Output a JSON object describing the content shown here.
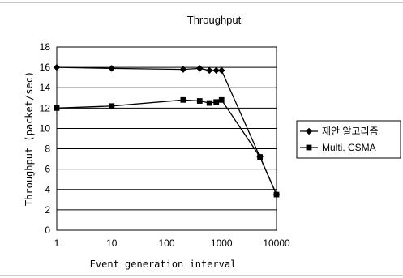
{
  "chart_data": {
    "type": "line",
    "title": "Throughput",
    "xlabel": "Event generation interval",
    "ylabel": "Throughput (packet/sec)",
    "x_scale": "log",
    "xlim": [
      1,
      10000
    ],
    "ylim": [
      0,
      18
    ],
    "x_ticks": [
      "1",
      "10",
      "100",
      "1000",
      "10000"
    ],
    "y_ticks": [
      "0",
      "2",
      "4",
      "6",
      "8",
      "10",
      "12",
      "14",
      "16",
      "18"
    ],
    "grid": true,
    "legend_position": "right",
    "series": [
      {
        "name": "제안 알고리즘",
        "marker": "diamond",
        "color": "#000000",
        "x": [
          1,
          10,
          200,
          400,
          600,
          800,
          1000,
          5000,
          10000
        ],
        "values": [
          16.0,
          15.9,
          15.8,
          15.9,
          15.7,
          15.7,
          15.7,
          7.2,
          3.5
        ]
      },
      {
        "name": "Multi. CSMA",
        "marker": "square",
        "color": "#000000",
        "x": [
          1,
          10,
          200,
          400,
          600,
          800,
          1000,
          5000,
          10000
        ],
        "values": [
          12.0,
          12.2,
          12.8,
          12.7,
          12.5,
          12.6,
          12.8,
          7.2,
          3.5
        ]
      }
    ]
  }
}
